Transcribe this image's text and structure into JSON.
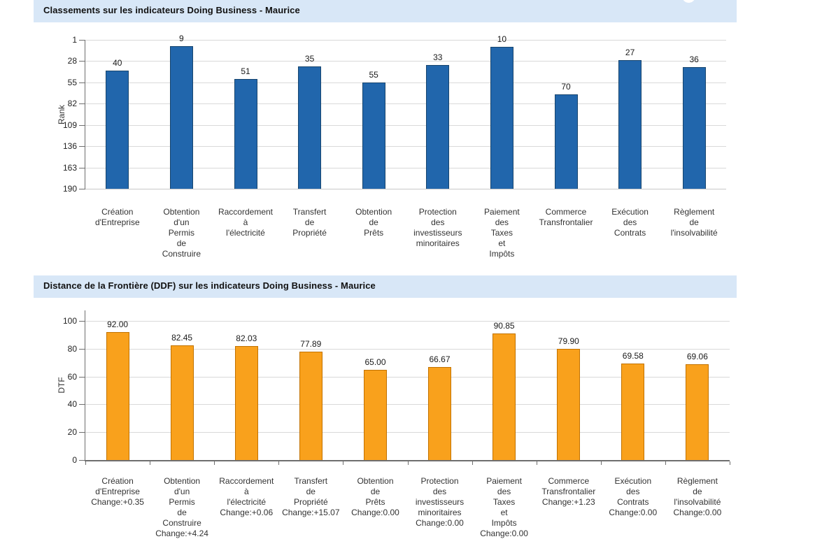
{
  "palette": {
    "header_bg": "#D8E7F7",
    "grid": "#D9D9D9",
    "axis": "#6E6E6E",
    "rank_bar_fill": "#2166AC",
    "rank_bar_border": "#17456E",
    "dtf_bar_fill": "#F9A11C",
    "dtf_bar_border": "#C27200"
  },
  "chart_data": [
    {
      "type": "bar",
      "title": "Classements sur les indicateurs Doing Business - Maurice",
      "ylabel": "Rank",
      "xlabel": "",
      "y_inverted": true,
      "ylim": [
        1,
        190
      ],
      "yticks": [
        1,
        28,
        55,
        82,
        109,
        136,
        163,
        190
      ],
      "grid": true,
      "legend": "none",
      "categories": [
        "Création d'Entreprise",
        "Obtention d'un Permis de Construire",
        "Raccordement à l'électricité",
        "Transfert de Propriété",
        "Obtention de Prêts",
        "Protection des investisseurs minoritaires",
        "Paiement des Taxes et Impôts",
        "Commerce Transfrontalier",
        "Exécution des Contrats",
        "Règlement de l'insolvabilité"
      ],
      "category_lines": [
        [
          "Création",
          "d'Entreprise"
        ],
        [
          "Obtention",
          "d'un",
          "Permis",
          "de",
          "Construire"
        ],
        [
          "Raccordement",
          "à",
          "l'électricité"
        ],
        [
          "Transfert",
          "de",
          "Propriété"
        ],
        [
          "Obtention",
          "de",
          "Prêts"
        ],
        [
          "Protection",
          "des",
          "investisseurs",
          "minoritaires"
        ],
        [
          "Paiement",
          "des",
          "Taxes",
          "et",
          "Impôts"
        ],
        [
          "Commerce",
          "Transfrontalier"
        ],
        [
          "Exécution",
          "des",
          "Contrats"
        ],
        [
          "Règlement",
          "de",
          "l'insolvabilité"
        ]
      ],
      "values": [
        40,
        9,
        51,
        35,
        55,
        33,
        10,
        70,
        27,
        36
      ],
      "value_labels": [
        "40",
        "9",
        "51",
        "35",
        "55",
        "33",
        "10",
        "70",
        "27",
        "36"
      ],
      "bar_fill": "#2166AC",
      "bar_border": "#17456E"
    },
    {
      "type": "bar",
      "title": "Distance de la Frontière (DDF) sur les indicateurs Doing Business - Maurice",
      "ylabel": "DTF",
      "xlabel": "",
      "y_inverted": false,
      "ylim": [
        0,
        100
      ],
      "yticks": [
        0,
        20,
        40,
        60,
        80,
        100
      ],
      "grid": true,
      "legend": "none",
      "categories": [
        "Création d'Entreprise Change:+0.35",
        "Obtention d'un Permis de Construire Change:+4.24",
        "Raccordement à l'électricité Change:+0.06",
        "Transfert de Propriété Change:+15.07",
        "Obtention de Prêts Change:0.00",
        "Protection des investisseurs minoritaires Change:0.00",
        "Paiement des Taxes et Impôts Change:0.00",
        "Commerce Transfrontalier Change:+1.23",
        "Exécution des Contrats Change:0.00",
        "Règlement de l'insolvabilité Change:0.00"
      ],
      "category_lines": [
        [
          "Création",
          "d'Entreprise",
          "Change:+0.35"
        ],
        [
          "Obtention",
          "d'un",
          "Permis",
          "de",
          "Construire",
          "Change:+4.24"
        ],
        [
          "Raccordement",
          "à",
          "l'électricité",
          "Change:+0.06"
        ],
        [
          "Transfert",
          "de",
          "Propriété",
          "Change:+15.07"
        ],
        [
          "Obtention",
          "de",
          "Prêts",
          "Change:0.00"
        ],
        [
          "Protection",
          "des",
          "investisseurs",
          "minoritaires",
          "Change:0.00"
        ],
        [
          "Paiement",
          "des",
          "Taxes",
          "et",
          "Impôts",
          "Change:0.00"
        ],
        [
          "Commerce",
          "Transfrontalier",
          "Change:+1.23"
        ],
        [
          "Exécution",
          "des",
          "Contrats",
          "Change:0.00"
        ],
        [
          "Règlement",
          "de",
          "l'insolvabilité",
          "Change:0.00"
        ]
      ],
      "values": [
        92.0,
        82.45,
        82.03,
        77.89,
        65.0,
        66.67,
        90.85,
        79.9,
        69.58,
        69.06
      ],
      "value_labels": [
        "92.00",
        "82.45",
        "82.03",
        "77.89",
        "65.00",
        "66.67",
        "90.85",
        "79.90",
        "69.58",
        "69.06"
      ],
      "changes": [
        "+0.35",
        "+4.24",
        "+0.06",
        "+15.07",
        "0.00",
        "0.00",
        "0.00",
        "+1.23",
        "0.00",
        "0.00"
      ],
      "bar_fill": "#F9A11C",
      "bar_border": "#C27200"
    }
  ]
}
